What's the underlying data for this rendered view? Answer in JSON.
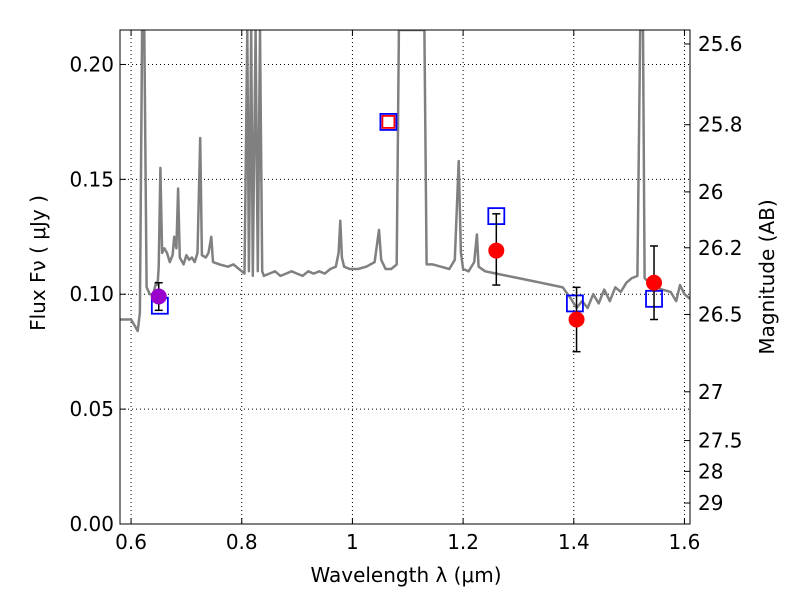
{
  "chart_data": {
    "type": "scatter",
    "xlabel": "Wavelength  λ (μm)",
    "ylabel": "Flux  Fν  ( μJy )",
    "y2label": "Magnitude (AB)",
    "xlim": [
      0.58,
      1.61
    ],
    "ylim": [
      0.0,
      0.215
    ],
    "x_ticks": [
      0.6,
      0.8,
      1.0,
      1.2,
      1.4,
      1.6
    ],
    "x_tick_labels": [
      "0.6",
      "0.8",
      "1",
      "1.2",
      "1.4",
      "1.6"
    ],
    "y_ticks": [
      0.0,
      0.05,
      0.1,
      0.15,
      0.2
    ],
    "y_tick_labels": [
      "0.00",
      "0.05",
      "0.10",
      "0.15",
      "0.20"
    ],
    "y2_ticks": [
      25.6,
      25.8,
      26.0,
      26.2,
      26.5,
      27.0,
      27.5,
      28.0,
      29.0
    ],
    "y2_tick_labels": [
      "25.6",
      "25.8",
      "26",
      "26.2",
      "26.5",
      "27",
      "27.5",
      "28",
      "29"
    ],
    "grid": true,
    "series": [
      {
        "marker": "line",
        "color": "#808080",
        "points": [
          [
            0.58,
            0.089
          ],
          [
            0.6,
            0.089
          ],
          [
            0.605,
            0.087
          ],
          [
            0.612,
            0.084
          ],
          [
            0.616,
            0.092
          ],
          [
            0.62,
            0.215
          ],
          [
            0.624,
            0.215
          ],
          [
            0.628,
            0.103
          ],
          [
            0.634,
            0.1
          ],
          [
            0.64,
            0.1
          ],
          [
            0.645,
            0.105
          ],
          [
            0.648,
            0.104
          ],
          [
            0.65,
            0.112
          ],
          [
            0.653,
            0.155
          ],
          [
            0.656,
            0.118
          ],
          [
            0.66,
            0.12
          ],
          [
            0.665,
            0.118
          ],
          [
            0.67,
            0.114
          ],
          [
            0.675,
            0.117
          ],
          [
            0.678,
            0.125
          ],
          [
            0.682,
            0.12
          ],
          [
            0.685,
            0.146
          ],
          [
            0.688,
            0.116
          ],
          [
            0.695,
            0.113
          ],
          [
            0.7,
            0.117
          ],
          [
            0.705,
            0.115
          ],
          [
            0.71,
            0.116
          ],
          [
            0.715,
            0.114
          ],
          [
            0.72,
            0.118
          ],
          [
            0.725,
            0.168
          ],
          [
            0.728,
            0.117
          ],
          [
            0.735,
            0.116
          ],
          [
            0.74,
            0.118
          ],
          [
            0.745,
            0.125
          ],
          [
            0.748,
            0.114
          ],
          [
            0.76,
            0.113
          ],
          [
            0.775,
            0.112
          ],
          [
            0.785,
            0.113
          ],
          [
            0.795,
            0.111
          ],
          [
            0.805,
            0.109
          ],
          [
            0.81,
            0.215
          ],
          [
            0.813,
            0.11
          ],
          [
            0.817,
            0.215
          ],
          [
            0.82,
            0.108
          ],
          [
            0.825,
            0.215
          ],
          [
            0.829,
            0.11
          ],
          [
            0.833,
            0.215
          ],
          [
            0.837,
            0.11
          ],
          [
            0.84,
            0.108
          ],
          [
            0.85,
            0.109
          ],
          [
            0.86,
            0.11
          ],
          [
            0.87,
            0.108
          ],
          [
            0.88,
            0.109
          ],
          [
            0.89,
            0.11
          ],
          [
            0.9,
            0.109
          ],
          [
            0.91,
            0.108
          ],
          [
            0.92,
            0.11
          ],
          [
            0.93,
            0.109
          ],
          [
            0.94,
            0.11
          ],
          [
            0.95,
            0.109
          ],
          [
            0.96,
            0.111
          ],
          [
            0.97,
            0.112
          ],
          [
            0.975,
            0.118
          ],
          [
            0.978,
            0.132
          ],
          [
            0.981,
            0.116
          ],
          [
            0.985,
            0.112
          ],
          [
            0.995,
            0.111
          ],
          [
            1.01,
            0.111
          ],
          [
            1.025,
            0.112
          ],
          [
            1.04,
            0.114
          ],
          [
            1.048,
            0.128
          ],
          [
            1.052,
            0.115
          ],
          [
            1.06,
            0.111
          ],
          [
            1.07,
            0.111
          ],
          [
            1.08,
            0.113
          ],
          [
            1.084,
            0.215
          ],
          [
            1.13,
            0.215
          ],
          [
            1.134,
            0.113
          ],
          [
            1.145,
            0.113
          ],
          [
            1.16,
            0.112
          ],
          [
            1.175,
            0.111
          ],
          [
            1.185,
            0.115
          ],
          [
            1.192,
            0.158
          ],
          [
            1.196,
            0.118
          ],
          [
            1.2,
            0.111
          ],
          [
            1.21,
            0.11
          ],
          [
            1.22,
            0.114
          ],
          [
            1.225,
            0.126
          ],
          [
            1.228,
            0.112
          ],
          [
            1.24,
            0.11
          ],
          [
            1.26,
            0.109
          ],
          [
            1.28,
            0.108
          ],
          [
            1.3,
            0.107
          ],
          [
            1.32,
            0.106
          ],
          [
            1.34,
            0.105
          ],
          [
            1.36,
            0.104
          ],
          [
            1.38,
            0.103
          ],
          [
            1.395,
            0.098
          ],
          [
            1.405,
            0.094
          ],
          [
            1.415,
            0.097
          ],
          [
            1.425,
            0.094
          ],
          [
            1.435,
            0.1
          ],
          [
            1.445,
            0.096
          ],
          [
            1.455,
            0.102
          ],
          [
            1.465,
            0.097
          ],
          [
            1.475,
            0.103
          ],
          [
            1.485,
            0.101
          ],
          [
            1.495,
            0.105
          ],
          [
            1.505,
            0.107
          ],
          [
            1.515,
            0.108
          ],
          [
            1.52,
            0.215
          ],
          [
            1.525,
            0.215
          ],
          [
            1.528,
            0.107
          ],
          [
            1.54,
            0.104
          ],
          [
            1.56,
            0.102
          ],
          [
            1.575,
            0.101
          ],
          [
            1.585,
            0.097
          ],
          [
            1.592,
            0.104
          ],
          [
            1.6,
            0.1
          ],
          [
            1.61,
            0.098
          ]
        ]
      },
      {
        "marker": "hollow-square",
        "color": "#0000ff",
        "points": [
          [
            0.652,
            0.095
          ],
          [
            1.065,
            0.175
          ],
          [
            1.26,
            0.134
          ],
          [
            1.402,
            0.096
          ],
          [
            1.545,
            0.098
          ]
        ]
      },
      {
        "marker": "hollow-square",
        "color": "#ff0000",
        "points": [
          [
            1.065,
            0.175
          ]
        ]
      },
      {
        "marker": "filled-circle-errorbar",
        "color": "#ff0000",
        "points": [
          {
            "x": 1.26,
            "y": 0.119,
            "ylo": 0.104,
            "yhi": 0.135
          },
          {
            "x": 1.405,
            "y": 0.089,
            "ylo": 0.075,
            "yhi": 0.103
          },
          {
            "x": 1.545,
            "y": 0.105,
            "ylo": 0.089,
            "yhi": 0.121
          }
        ]
      },
      {
        "marker": "filled-circle-errorbar",
        "color": "#9900cc",
        "points": [
          {
            "x": 0.65,
            "y": 0.099,
            "ylo": 0.093,
            "yhi": 0.105
          }
        ]
      }
    ]
  }
}
